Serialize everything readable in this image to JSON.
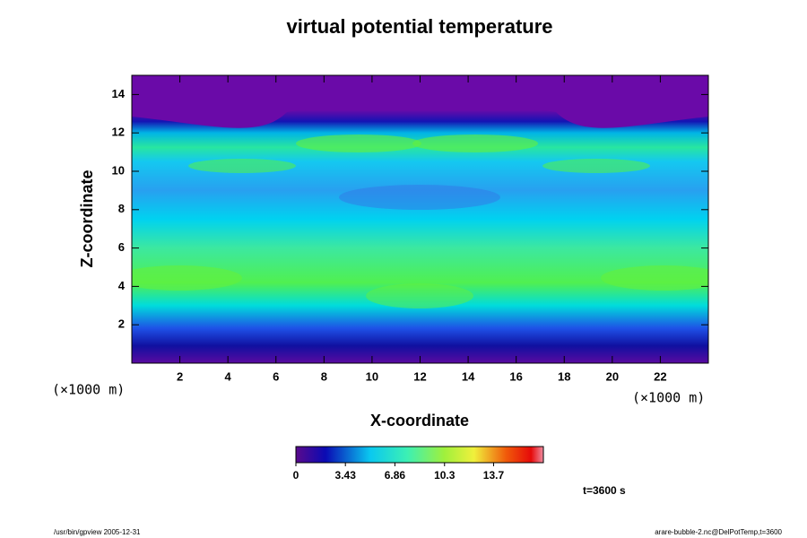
{
  "chart_data": {
    "type": "contour",
    "title": "virtual potential temperature",
    "x_label": "X-coordinate",
    "y_label": "Z-coordinate",
    "x_unit": "(×1000 m)",
    "y_unit": "(×1000 m)",
    "xlim": [
      0,
      24
    ],
    "xticks": [
      2,
      4,
      6,
      8,
      10,
      12,
      14,
      16,
      18,
      20,
      22
    ],
    "ylim": [
      0,
      15
    ],
    "yticks": [
      2,
      4,
      6,
      8,
      10,
      12,
      14
    ],
    "colorbar": {
      "clim": [
        0,
        17.15
      ],
      "ticks": [
        0,
        3.43,
        6.86,
        10.3,
        13.7
      ]
    },
    "time_label": "t=3600 s",
    "footer_left": "/usr/bin/gpview 2005-12-31",
    "footer_right": "arare-bubble-2.nc@DelPotTemp,t=3600"
  }
}
